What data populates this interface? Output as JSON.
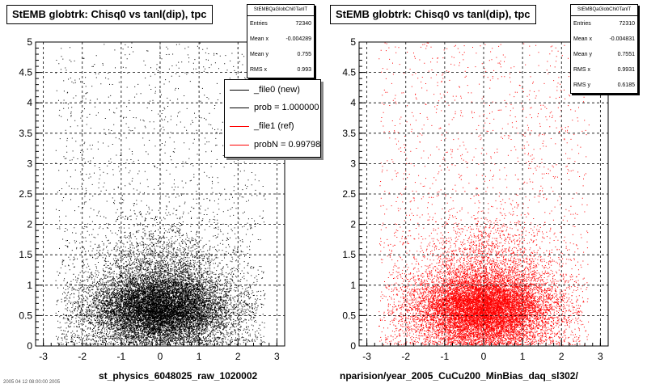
{
  "panels": [
    {
      "title": "StEMB globtrk: Chisq0 vs tanl(dip), tpc",
      "stats": {
        "name": "StEMBQaGlobChi0TanlT",
        "rows": [
          {
            "label": "Entries",
            "value": "72340"
          },
          {
            "label": "Mean x",
            "value": "-0.004289"
          },
          {
            "label": "Mean y",
            "value": "0.755"
          },
          {
            "label": "RMS x",
            "value": "0.993"
          }
        ]
      },
      "legend": [
        {
          "label": "_file0 (new)",
          "color": "#000000"
        },
        {
          "label": "prob = 1.000000",
          "color": "#000000"
        },
        {
          "label": "_file1 (ref)",
          "color": "#ff0000"
        },
        {
          "label": "probN = 0.997982",
          "color": "#ff0000"
        }
      ],
      "x_title": "st_physics_6048025_raw_1020002"
    },
    {
      "title": "StEMB globtrk: Chisq0 vs tanl(dip), tpc",
      "stats": {
        "name": "StEMBQaGlobChi0TanlT",
        "rows": [
          {
            "label": "Entries",
            "value": "72310"
          },
          {
            "label": "Mean x",
            "value": "-0.004831"
          },
          {
            "label": "Mean y",
            "value": "0.7551"
          },
          {
            "label": "RMS x",
            "value": "0.9931"
          },
          {
            "label": "RMS y",
            "value": "0.6185"
          }
        ]
      },
      "x_title": "nparision/year_2005_CuCu200_MinBias_daq_sl302/"
    }
  ],
  "footer_text": "2005 04 12 08:00:00 2005",
  "chart_data": [
    {
      "type": "scatter",
      "title": "StEMB globtrk: Chisq0 vs tanl(dip), tpc",
      "series_color": "#000000",
      "entries": 72340,
      "mean_x": -0.004289,
      "mean_y": 0.755,
      "rms_x": 0.993,
      "xlim": [
        -3.2,
        3.2
      ],
      "ylim": [
        0,
        5
      ],
      "xticks": [
        -3,
        -2,
        -1,
        0,
        1,
        2,
        3
      ],
      "yticks": [
        0,
        0.5,
        1,
        1.5,
        2,
        2.5,
        3,
        3.5,
        4,
        4.5,
        5
      ],
      "grid": true,
      "legend_position": "top-right"
    },
    {
      "type": "scatter",
      "title": "StEMB globtrk: Chisq0 vs tanl(dip), tpc",
      "series_color": "#ff0000",
      "entries": 72310,
      "mean_x": -0.004831,
      "mean_y": 0.7551,
      "rms_x": 0.9931,
      "rms_y": 0.6185,
      "xlim": [
        -3.2,
        3.2
      ],
      "ylim": [
        0,
        5
      ],
      "xticks": [
        -3,
        -2,
        -1,
        0,
        1,
        2,
        3
      ],
      "yticks": [
        0,
        0.5,
        1,
        1.5,
        2,
        2.5,
        3,
        3.5,
        4,
        4.5,
        5
      ],
      "grid": true
    }
  ]
}
